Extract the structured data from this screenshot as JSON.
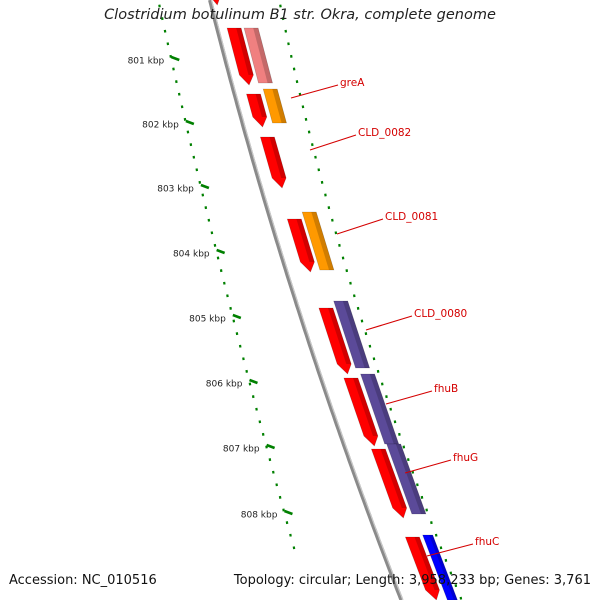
{
  "title": "Clostridium botulinum B1 str. Okra, complete genome",
  "ticks": [
    "801 kbp",
    "802 kbp",
    "803 kbp",
    "804 kbp",
    "805 kbp",
    "806 kbp",
    "807 kbp",
    "808 kbp"
  ],
  "gene_labels": [
    "greA",
    "CLD_0082",
    "CLD_0081",
    "CLD_0080",
    "fhuB",
    "fhuG",
    "fhuC"
  ],
  "footer": {
    "accession": "Accession: NC_010516",
    "topology": "Topology: circular; Length: 3,958,233 bp; Genes: 3,761"
  },
  "colors": {
    "backbone": "#8a8a8a",
    "tick": "#008000",
    "label": "#d40000",
    "cds_red": "#ff0000",
    "pink": "#f08080",
    "orange": "#ff9900",
    "purple": "#5b4a99",
    "blue": "#0000ff"
  }
}
